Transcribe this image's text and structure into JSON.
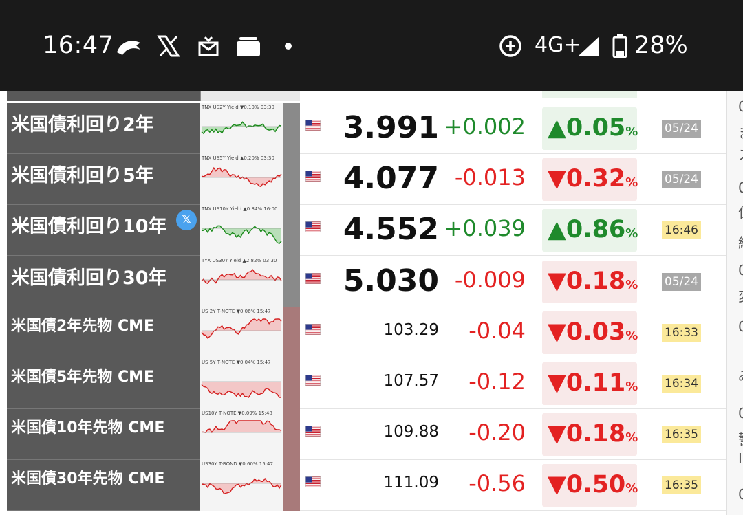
{
  "status_bar": {
    "time": "16:47",
    "network": "4G+",
    "battery": "28%",
    "icons": [
      "mail-app-icon",
      "x-icon",
      "message-icon",
      "wallet-icon",
      "dot-icon",
      "data-saver-icon",
      "signal-icon",
      "battery-icon"
    ]
  },
  "rows": [
    {
      "name": "米国債利回り2年",
      "chart_label": "TNX US2Y Yield ▼0.10% 03:30",
      "price": "3.991",
      "change": "+0.002",
      "direction": "up",
      "pct_value": "▲0.05",
      "pct_unit": "%",
      "time": "05/24",
      "time_style": "gray"
    },
    {
      "name": "米国債利回り5年",
      "chart_label": "TNX US5Y Yield ▲0.20% 03:30",
      "price": "4.077",
      "change": "-0.013",
      "direction": "down",
      "pct_value": "▼0.32",
      "pct_unit": "%",
      "time": "05/24",
      "time_style": "gray"
    },
    {
      "name": "米国債利回り10年",
      "chart_label": "TNX US10Y Yield ▲0.84% 16:00",
      "price": "4.552",
      "change": "+0.039",
      "direction": "up",
      "pct_value": "▲0.86",
      "pct_unit": "%",
      "time": "16:46",
      "time_style": "yellow"
    },
    {
      "name": "米国債利回り30年",
      "chart_label": "TYX US30Y Yield ▲2.82% 03:30",
      "price": "5.030",
      "change": "-0.009",
      "direction": "down",
      "pct_value": "▼0.18",
      "pct_unit": "%",
      "time": "05/24",
      "time_style": "gray"
    },
    {
      "name": "米国債2年先物 CME",
      "chart_label": "US 2Y T-NOTE ▼0.06% 15:47",
      "price": "103.29",
      "change": "-0.04",
      "direction": "down",
      "pct_value": "▼0.03",
      "pct_unit": "%",
      "time": "16:33",
      "time_style": "yellow"
    },
    {
      "name": "米国債5年先物 CME",
      "chart_label": "US 5Y T-NOTE ▼0.04% 15:47",
      "price": "107.57",
      "change": "-0.12",
      "direction": "down",
      "pct_value": "▼0.11",
      "pct_unit": "%",
      "time": "16:34",
      "time_style": "yellow"
    },
    {
      "name": "米国債10年先物 CME",
      "chart_label": "US10Y T-NOTE ▼0.09% 15:48",
      "price": "109.88",
      "change": "-0.20",
      "direction": "down",
      "pct_value": "▼0.18",
      "pct_unit": "%",
      "time": "16:35",
      "time_style": "yellow"
    },
    {
      "name": "米国債30年先物 CME",
      "chart_label": "US30Y T-BOND ▼0.60% 15:47",
      "price": "111.09",
      "change": "-0.56",
      "direction": "down",
      "pct_value": "▼0.50",
      "pct_unit": "%",
      "time": "16:35",
      "time_style": "yellow"
    }
  ],
  "right_column_fragments": [
    "0",
    "ま",
    "ス",
    "0",
    "住",
    "給",
    "0",
    "変",
    "0",
    "み",
    "0",
    "警",
    "I",
    "0"
  ],
  "colors": {
    "up": "#1f8a2c",
    "down": "#e32222",
    "name_bg": "#595959",
    "x_badge": "#4aa2ee"
  }
}
